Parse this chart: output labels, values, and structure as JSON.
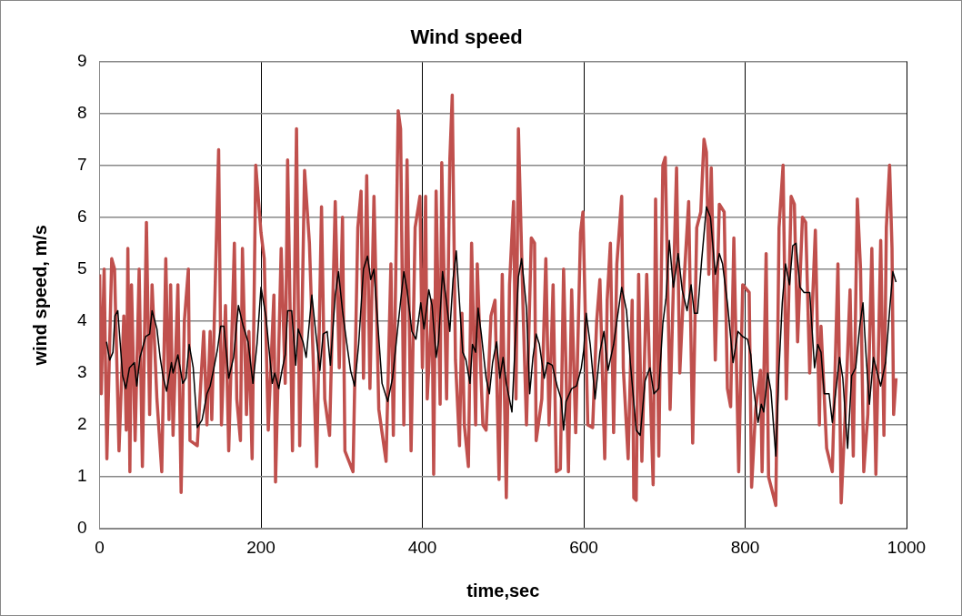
{
  "chart_data": {
    "type": "line",
    "title": "Wind speed",
    "xlabel": "time,sec",
    "ylabel": "wind speed, m/s",
    "xlim": [
      0,
      1000
    ],
    "xticks": [
      0,
      200,
      400,
      600,
      800,
      1000
    ],
    "ylim": [
      0,
      9
    ],
    "yticks": [
      0,
      1,
      2,
      3,
      4,
      5,
      6,
      7,
      8,
      9
    ],
    "grid": true,
    "legend": false,
    "series": [
      {
        "color": "#c0504d",
        "x": [
          0,
          2,
          5.6,
          9,
          15,
          18.5,
          24,
          30,
          33,
          35,
          37.5,
          39.5,
          44,
          49,
          53,
          58,
          62,
          65,
          71,
          77,
          82,
          86,
          88,
          91,
          97,
          101,
          105,
          110,
          112,
          121,
          129,
          133,
          137,
          139,
          147.5,
          151,
          156,
          160,
          167,
          170,
          174.5,
          177,
          182,
          185,
          189,
          193.5,
          200,
          204,
          209,
          216,
          218,
          225,
          230,
          233,
          239,
          244,
          248,
          254,
          260,
          269,
          275,
          279,
          285,
          292,
          297,
          301,
          304,
          314,
          320,
          324,
          327,
          331,
          335,
          340,
          346,
          355,
          361,
          364,
          370,
          373,
          377,
          381,
          386,
          391,
          397,
          400,
          404,
          406,
          412,
          414,
          417,
          422,
          424,
          430,
          434,
          437,
          441,
          446,
          449,
          452,
          457,
          461,
          466,
          468,
          473,
          475,
          479,
          485,
          490,
          495,
          499,
          504,
          508,
          513,
          516,
          519,
          525,
          529,
          535,
          539,
          541,
          548,
          553,
          557,
          562,
          566,
          571,
          575,
          581,
          585,
          590,
          596,
          599,
          605,
          611,
          616,
          620,
          626,
          629,
          633,
          637,
          641,
          647,
          649,
          655,
          660,
          662,
          665,
          668,
          672,
          678,
          686,
          689,
          693,
          698,
          701,
          707,
          710,
          715,
          719,
          724,
          730,
          735,
          740,
          745,
          749,
          752,
          755,
          758,
          763,
          768,
          774,
          778,
          782,
          786,
          792,
          797,
          805,
          808,
          813,
          819,
          821,
          826,
          829,
          834,
          838,
          842,
          847,
          851,
          857,
          861,
          865,
          871,
          875,
          880,
          887,
          892,
          894,
          901,
          908,
          915,
          919,
          924,
          930,
          934,
          939,
          943,
          947,
          952,
          957,
          962,
          968,
          972,
          975,
          979,
          982,
          984,
          987
        ],
        "values": [
          4.9,
          2.6,
          5.0,
          1.35,
          5.2,
          5.0,
          1.5,
          4.1,
          1.9,
          5.4,
          1.1,
          4.7,
          1.7,
          5.0,
          1.2,
          5.9,
          2.2,
          4.7,
          2.5,
          1.1,
          5.2,
          2.1,
          4.7,
          1.8,
          4.7,
          0.7,
          4.0,
          5.0,
          1.7,
          1.6,
          3.8,
          2.0,
          3.8,
          2.1,
          7.3,
          2.0,
          4.3,
          1.5,
          5.5,
          2.5,
          1.7,
          5.4,
          2.2,
          3.8,
          1.35,
          7.0,
          5.7,
          5.2,
          1.9,
          4.5,
          0.9,
          5.4,
          2.8,
          7.1,
          1.5,
          7.7,
          1.6,
          6.9,
          5.5,
          1.2,
          6.2,
          2.5,
          1.8,
          6.3,
          3.1,
          6.0,
          1.5,
          1.1,
          5.8,
          6.5,
          2.9,
          6.8,
          2.7,
          6.4,
          2.3,
          1.3,
          5.1,
          1.8,
          8.05,
          7.7,
          2.0,
          7.1,
          1.5,
          5.8,
          6.4,
          3.1,
          6.4,
          2.5,
          4.4,
          1.05,
          6.5,
          2.4,
          7.05,
          2.5,
          7.1,
          8.35,
          3.25,
          1.6,
          4.15,
          2.0,
          1.2,
          5.5,
          2.0,
          5.1,
          2.8,
          2.0,
          1.9,
          4.1,
          4.4,
          0.95,
          4.9,
          0.6,
          4.7,
          6.3,
          2.5,
          7.7,
          4.1,
          2.0,
          5.6,
          5.5,
          1.7,
          2.5,
          5.2,
          2.0,
          4.7,
          1.1,
          1.15,
          5.0,
          1.1,
          4.6,
          1.85,
          5.7,
          6.1,
          2.0,
          1.95,
          4.0,
          4.8,
          1.35,
          4.4,
          5.5,
          1.85,
          5.1,
          6.4,
          3.1,
          1.35,
          4.4,
          0.6,
          0.55,
          4.9,
          1.3,
          4.9,
          0.85,
          6.35,
          1.4,
          7.0,
          7.15,
          2.3,
          4.05,
          6.95,
          3.0,
          4.7,
          6.3,
          1.65,
          5.8,
          6.1,
          7.5,
          7.25,
          4.9,
          6.95,
          3.25,
          6.25,
          6.1,
          2.7,
          2.35,
          5.6,
          1.1,
          4.7,
          4.55,
          0.8,
          2.3,
          3.05,
          1.1,
          5.3,
          1.0,
          0.7,
          0.45,
          5.8,
          7.0,
          2.5,
          6.4,
          6.25,
          3.6,
          6.0,
          5.9,
          3.0,
          5.75,
          2.0,
          3.9,
          1.55,
          1.1,
          5.1,
          0.5,
          2.2,
          4.6,
          1.4,
          6.35,
          5.0,
          1.1,
          2.2,
          5.4,
          1.05,
          5.55,
          1.8,
          5.8,
          7.0,
          5.4,
          2.2,
          2.9
        ]
      },
      {
        "color": "#000000",
        "x": [
          8.5,
          12.5,
          16.5,
          19,
          22.5,
          28.5,
          32.5,
          37,
          43,
          46,
          50,
          57,
          62,
          65,
          71,
          75,
          79,
          83,
          89,
          91,
          97,
          103,
          107,
          111,
          116,
          121,
          127,
          133,
          137,
          141,
          146,
          150,
          154,
          160,
          166,
          172,
          178,
          184,
          190,
          195,
          200,
          206,
          214,
          217,
          222,
          226,
          230,
          233,
          238,
          243,
          246,
          252,
          256,
          263,
          267,
          273,
          277,
          282,
          286,
          292,
          296,
          301,
          306,
          311,
          316,
          321,
          327,
          332,
          336,
          340,
          344,
          350,
          357,
          363,
          369,
          377,
          381,
          387,
          392,
          398,
          402,
          408,
          412,
          417,
          420,
          425,
          430,
          434,
          438,
          442,
          446,
          450,
          454,
          459,
          462,
          466,
          469,
          473,
          479,
          483,
          487,
          492,
          496,
          500,
          504,
          511,
          516,
          519,
          523,
          529,
          533,
          537,
          541,
          545,
          551,
          555,
          561,
          567,
          572,
          575,
          578,
          585,
          591,
          597,
          600,
          603,
          608,
          614,
          620,
          625,
          630,
          637,
          641,
          647,
          653,
          658,
          665,
          670,
          676,
          682,
          687,
          693,
          698,
          702,
          706,
          711,
          717,
          722,
          728,
          733,
          737,
          741,
          746,
          752,
          757,
          763,
          768,
          772,
          778,
          785,
          791,
          797,
          803,
          807,
          810,
          813,
          816,
          820,
          823,
          828,
          832,
          838,
          842,
          846,
          850,
          855,
          859,
          863,
          868,
          873,
          880,
          886,
          890,
          894,
          898,
          904,
          908,
          917,
          921,
          927,
          932,
          937,
          942,
          946,
          950,
          954,
          959,
          963,
          968,
          974,
          979,
          983,
          987
        ],
        "values": [
          3.6,
          3.25,
          3.4,
          4.1,
          4.2,
          2.95,
          2.7,
          3.1,
          3.2,
          2.75,
          3.3,
          3.7,
          3.75,
          4.2,
          3.85,
          3.3,
          2.9,
          2.65,
          3.2,
          3.0,
          3.35,
          2.8,
          2.9,
          3.55,
          3.1,
          1.95,
          2.1,
          2.6,
          2.75,
          3.05,
          3.45,
          3.9,
          3.9,
          2.9,
          3.3,
          4.3,
          3.9,
          3.6,
          2.8,
          3.55,
          4.65,
          4.1,
          2.8,
          3.0,
          2.7,
          3.05,
          3.35,
          4.2,
          4.2,
          3.15,
          3.85,
          3.6,
          3.3,
          4.5,
          3.9,
          3.05,
          3.75,
          3.8,
          3.15,
          4.5,
          4.95,
          4.2,
          3.6,
          3.05,
          2.75,
          3.55,
          5.0,
          5.25,
          4.8,
          5.0,
          4.1,
          2.8,
          2.45,
          2.9,
          3.8,
          4.95,
          4.6,
          3.8,
          3.65,
          4.35,
          3.85,
          4.6,
          4.3,
          3.3,
          3.6,
          4.95,
          4.35,
          3.8,
          4.8,
          5.35,
          4.35,
          3.4,
          3.25,
          2.8,
          3.55,
          3.4,
          4.25,
          3.75,
          2.9,
          2.6,
          3.2,
          3.6,
          2.9,
          3.3,
          2.8,
          2.25,
          3.9,
          4.85,
          5.2,
          4.25,
          2.6,
          3.3,
          3.75,
          3.55,
          2.9,
          3.2,
          3.15,
          2.75,
          2.5,
          1.9,
          2.45,
          2.7,
          2.75,
          3.1,
          3.45,
          4.15,
          3.55,
          2.5,
          3.4,
          3.8,
          3.05,
          3.55,
          4.0,
          4.65,
          4.2,
          3.15,
          1.9,
          1.8,
          2.85,
          3.1,
          2.6,
          2.7,
          3.95,
          4.45,
          5.55,
          4.65,
          5.3,
          4.6,
          4.2,
          4.7,
          4.15,
          4.15,
          5.15,
          6.2,
          6.0,
          4.9,
          5.3,
          5.1,
          4.35,
          3.2,
          3.8,
          3.7,
          3.65,
          3.35,
          2.75,
          2.4,
          2.05,
          2.4,
          2.25,
          3.0,
          2.65,
          1.4,
          3.1,
          4.35,
          5.1,
          4.7,
          5.45,
          5.5,
          4.65,
          4.55,
          4.55,
          3.1,
          3.55,
          3.4,
          2.6,
          2.6,
          2.05,
          3.3,
          2.9,
          1.55,
          2.95,
          3.1,
          3.9,
          4.35,
          3.3,
          2.4,
          3.3,
          3.05,
          2.75,
          3.2,
          4.2,
          4.95,
          4.75
        ]
      }
    ]
  }
}
